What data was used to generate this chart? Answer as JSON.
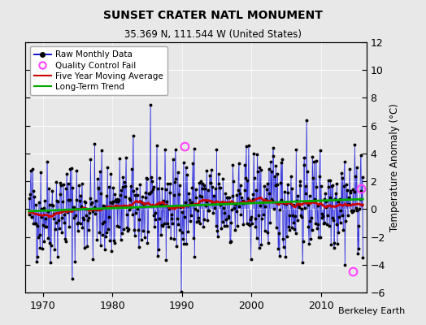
{
  "title": "SUNSET CRATER NATL MONUMENT",
  "subtitle": "35.369 N, 111.544 W (United States)",
  "ylabel": "Temperature Anomaly (°C)",
  "credit": "Berkeley Earth",
  "ylim": [
    -6,
    12
  ],
  "yticks": [
    -6,
    -4,
    -2,
    0,
    2,
    4,
    6,
    8,
    10,
    12
  ],
  "xlim": [
    1967.5,
    2016.5
  ],
  "xticks": [
    1970,
    1980,
    1990,
    2000,
    2010
  ],
  "start_year": 1968,
  "end_year": 2016,
  "background_color": "#e8e8e8",
  "raw_line_color": "#8888ff",
  "raw_dot_color": "#000000",
  "raw_connect_color": "#0000cc",
  "moving_avg_color": "#cc0000",
  "trend_color": "#00aa00",
  "qc_fail_color": "#ff44ff",
  "seed": 42,
  "trend_slope": 0.018,
  "trend_intercept": -0.15,
  "qc_fail_points": [
    [
      1990.33,
      4.5
    ],
    [
      2014.5,
      -4.5
    ],
    [
      2015.75,
      1.5
    ]
  ],
  "legend_loc": "upper left"
}
